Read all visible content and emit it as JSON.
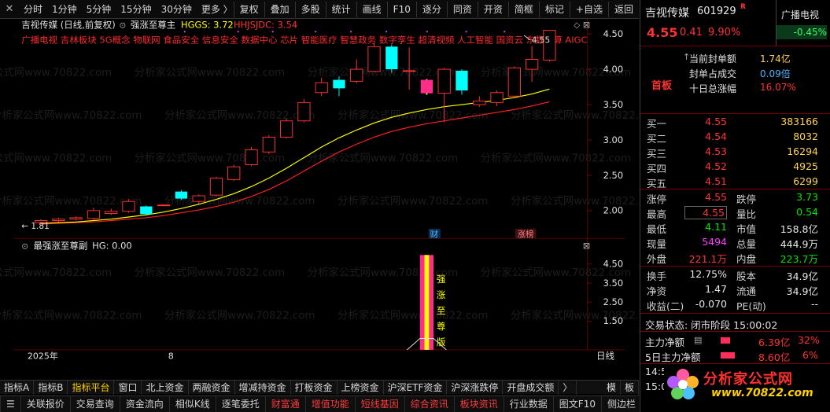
{
  "toolbar": {
    "periods": [
      "分时",
      "1分钟",
      "5分钟",
      "15分钟",
      "30分钟",
      "更多 〉"
    ],
    "buttons": [
      "复权",
      "叠加",
      "多股",
      "统计",
      "画线",
      "F10",
      "逐分",
      "同资",
      "开资",
      "简框",
      "标记",
      "+自选",
      "返回"
    ],
    "close": "×"
  },
  "chart": {
    "stock_title": "吉视传媒 (日线,前复权)",
    "indicator_name": "强涨至尊主",
    "hggs_label": "HGGS: 3.72",
    "hhjsjdc_label": "HHJSJDC: 3.54",
    "concepts": "广播电视 吉林板块 5G概念 物联网 食品安全 信息安全 数据中心 芯片 智能医疗 智慧政务 数字孪生 超清视频 人工智能 国资云 东数西算 AIGC",
    "high_marker": "4.55",
    "low_marker": "← 1.81",
    "watermark": "分析家公式网www.70822.com",
    "badge_cai": "财",
    "badge_zhangbang": "涨榜",
    "sub_indicator": "最强涨至尊副",
    "sub_hg": "HG: 0.00",
    "sub_vertical_text": "强涨至尊版",
    "x_year": "2025年",
    "x_month": "8",
    "period_label": "日线",
    "main_y_ticks": [
      "4.50",
      "4.00",
      "3.50",
      "3.00",
      "2.50",
      "2.00"
    ],
    "sub_y_ticks": [
      "4.50",
      "3.50",
      "2.50",
      "1.50"
    ],
    "candles": [
      {
        "o": 1.83,
        "c": 1.86,
        "h": 1.88,
        "l": 1.81
      },
      {
        "o": 1.86,
        "c": 1.88,
        "h": 1.9,
        "l": 1.84
      },
      {
        "o": 1.88,
        "c": 1.9,
        "h": 1.92,
        "l": 1.86
      },
      {
        "o": 1.89,
        "c": 2.0,
        "h": 2.04,
        "l": 1.87
      },
      {
        "o": 1.96,
        "c": 1.99,
        "h": 2.03,
        "l": 1.94
      },
      {
        "o": 1.99,
        "c": 2.13,
        "h": 2.16,
        "l": 1.97
      },
      {
        "o": 2.06,
        "c": 1.95,
        "h": 2.07,
        "l": 1.93
      },
      {
        "o": 2.08,
        "c": 2.08,
        "h": 2.09,
        "l": 2.07
      },
      {
        "o": 2.27,
        "c": 2.17,
        "h": 2.29,
        "l": 2.15
      },
      {
        "o": 2.13,
        "c": 2.21,
        "h": 2.23,
        "l": 2.1
      },
      {
        "o": 2.22,
        "c": 2.46,
        "h": 2.48,
        "l": 2.2
      },
      {
        "o": 2.44,
        "c": 2.62,
        "h": 2.65,
        "l": 2.42
      },
      {
        "o": 2.65,
        "c": 2.86,
        "h": 2.9,
        "l": 2.63
      },
      {
        "o": 2.83,
        "c": 3.04,
        "h": 3.07,
        "l": 2.8
      },
      {
        "o": 3.04,
        "c": 3.27,
        "h": 3.3,
        "l": 3.02
      },
      {
        "o": 3.27,
        "c": 3.53,
        "h": 3.58,
        "l": 3.25
      },
      {
        "o": 3.67,
        "c": 3.81,
        "h": 3.88,
        "l": 3.62
      },
      {
        "o": 3.85,
        "c": 3.73,
        "h": 3.9,
        "l": 3.62
      },
      {
        "o": 3.83,
        "c": 4.0,
        "h": 4.14,
        "l": 3.8
      },
      {
        "o": 3.97,
        "c": 4.32,
        "h": 4.37,
        "l": 3.96
      },
      {
        "o": 4.32,
        "c": 4.0,
        "h": 4.35,
        "l": 3.95
      },
      {
        "o": 3.98,
        "c": 3.98,
        "h": 4.31,
        "l": 3.71
      },
      {
        "o": 3.85,
        "c": 3.66,
        "h": 3.86,
        "l": 3.64
      },
      {
        "o": 3.66,
        "c": 4.0,
        "h": 4.02,
        "l": 3.25
      },
      {
        "o": 3.98,
        "c": 3.7,
        "h": 4.0,
        "l": 3.64
      },
      {
        "o": 3.5,
        "c": 3.55,
        "h": 3.62,
        "l": 3.47
      },
      {
        "o": 3.53,
        "c": 3.67,
        "h": 3.7,
        "l": 3.48
      },
      {
        "o": 3.62,
        "c": 4.02,
        "h": 4.04,
        "l": 3.6
      },
      {
        "o": 4.0,
        "c": 4.14,
        "h": 4.33,
        "l": 3.82
      },
      {
        "o": 4.13,
        "c": 4.55,
        "h": 4.55,
        "l": 4.11
      }
    ],
    "ma_yellow": [
      1.82,
      1.83,
      1.84,
      1.86,
      1.88,
      1.91,
      1.94,
      1.98,
      2.03,
      2.09,
      2.16,
      2.24,
      2.34,
      2.46,
      2.6,
      2.75,
      2.9,
      3.03,
      3.14,
      3.24,
      3.32,
      3.38,
      3.43,
      3.47,
      3.5,
      3.53,
      3.56,
      3.6,
      3.65,
      3.72
    ],
    "ma_red": [
      1.81,
      1.82,
      1.83,
      1.84,
      1.86,
      1.88,
      1.9,
      1.93,
      1.97,
      2.01,
      2.06,
      2.12,
      2.2,
      2.3,
      2.42,
      2.56,
      2.7,
      2.83,
      2.94,
      3.04,
      3.12,
      3.18,
      3.23,
      3.27,
      3.31,
      3.35,
      3.39,
      3.43,
      3.48,
      3.54
    ],
    "signal_index": 22
  },
  "bottom_tabs": [
    "指标A",
    "指标B",
    "指标平台",
    "窗口",
    "北上资金",
    "两融资金",
    "增减持资金",
    "打板资金",
    "上榜资金",
    "沪深ETF资金",
    "沪深涨跌停",
    "开盘成交额",
    "〉"
  ],
  "bottom_tabs_right": [
    "模",
    "板"
  ],
  "status_bar": [
    "关联报价",
    "交易查询",
    "资金流向",
    "相似K线",
    "逐笔委托",
    "财富通",
    "增值功能",
    "短线基因",
    "综合资讯",
    "板块资讯",
    "行业数据",
    "图文F10",
    "侧边栏"
  ],
  "quote": {
    "name": "吉视传媒",
    "code": "601929",
    "r_flag": "R",
    "sector": "广播电视",
    "sector_change": "-0.45%",
    "price": "4.55",
    "change": "0.41",
    "pct": "9.90%",
    "seal_label": "当前封单额",
    "seal_value": "1.74亿",
    "seal_ratio_label": "封单占成交",
    "seal_ratio_value": "0.09倍",
    "ten_day_label": "十日总涨幅",
    "ten_day_value": "16.07%",
    "first_board": "首板",
    "bids": [
      {
        "label": "买一",
        "price": "4.55",
        "vol": "383166"
      },
      {
        "label": "买二",
        "price": "4.54",
        "vol": "8032"
      },
      {
        "label": "买三",
        "price": "4.53",
        "vol": "16294"
      },
      {
        "label": "买四",
        "price": "4.52",
        "vol": "4925"
      },
      {
        "label": "买五",
        "price": "4.51",
        "vol": "6299"
      }
    ],
    "stats": [
      {
        "l1": "涨停",
        "v1": "4.55",
        "c1": "red",
        "l2": "跌停",
        "v2": "3.73",
        "c2": "green"
      },
      {
        "l1": "最高",
        "v1": "4.55",
        "c1": "red",
        "l2": "量比",
        "v2": "0.54",
        "c2": "green"
      },
      {
        "l1": "最低",
        "v1": "4.11",
        "c1": "green",
        "l2": "市值",
        "v2": "158.8亿",
        "c2": "white"
      },
      {
        "l1": "现量",
        "v1": "5494",
        "c1": "mag",
        "l2": "总量",
        "v2": "444.9万",
        "c2": "white"
      },
      {
        "l1": "外盘",
        "v1": "221.1万",
        "c1": "red",
        "l2": "内盘",
        "v2": "223.7万",
        "c2": "green"
      }
    ],
    "stats2": [
      {
        "l1": "换手",
        "v1": "12.75%",
        "l2": "股本",
        "v2": "34.9亿"
      },
      {
        "l1": "净资",
        "v1": "1.47",
        "l2": "流通",
        "v2": "34.9亿"
      },
      {
        "l1": "收益(二)",
        "v1": "-0.070",
        "l2": "PE(动)",
        "v2": "--"
      }
    ],
    "trade_state": "交易状态: 闭市阶段 15:00:02",
    "main_net_label": "主力净额",
    "main_net_value": "6.39亿",
    "main_net_pct": "32%",
    "five_day_label": "5日主力净额",
    "five_day_value": "8.60亿",
    "five_day_pct": "6%",
    "time1": "14:5",
    "time2": "15:0"
  },
  "logo": {
    "text": "分析家公式网",
    "url": "www.70822.com"
  },
  "colors": {
    "up": "#ff3232",
    "down": "#00ffff",
    "ma1": "#ffff00",
    "ma2": "#ff2020",
    "signal": "#ff2d8a"
  }
}
